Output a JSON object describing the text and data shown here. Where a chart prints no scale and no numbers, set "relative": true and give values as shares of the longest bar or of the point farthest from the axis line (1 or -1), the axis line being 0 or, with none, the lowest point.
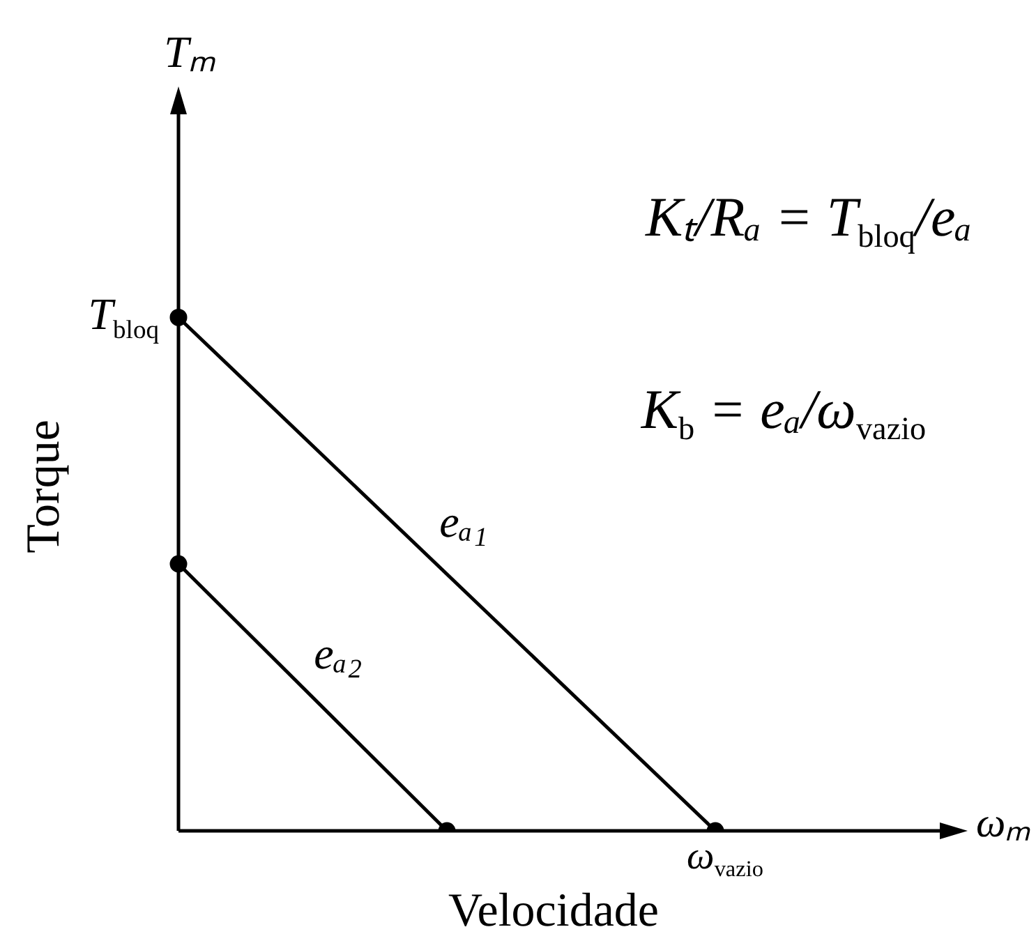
{
  "chart_data": {
    "type": "line",
    "relative": true,
    "xlabel": "Velocidade",
    "ylabel": "Torque",
    "marker": "circle",
    "categories": [
      null,
      null,
      null
    ],
    "series": [
      {
        "name": "eₐ₁",
        "color": "#000000",
        "values": [
          1,
          null,
          0
        ]
      },
      {
        "name": "eₐ₂",
        "color": "#000000",
        "values": [
          0.52,
          0,
          null
        ]
      }
    ],
    "annotations": [
      "Tₘ",
      "ωₘ",
      "Kₜ/Rₐ = T$_{bloq}$/eₐ",
      "K$_{b}$ = eₐ/ω$_{vazio}$",
      "ω$_{vazio}$",
      "T$_{bloq}$"
    ]
  }
}
